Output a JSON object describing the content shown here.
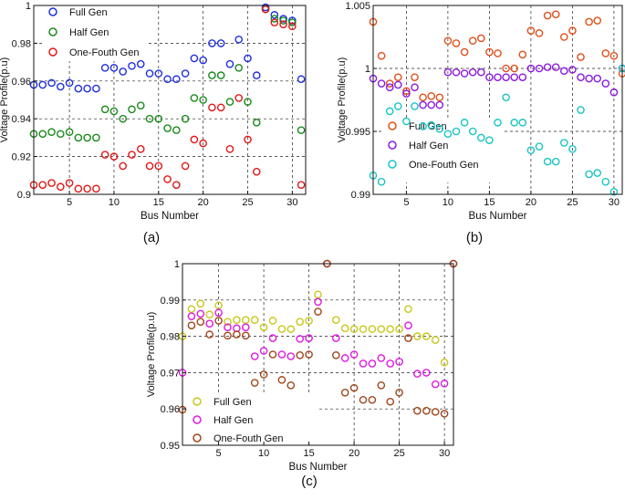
{
  "figure_labels": [
    "(a)",
    "(b)",
    "(c)"
  ],
  "colors": {
    "full": "#1f2fe0",
    "half": "#1a8a1a",
    "one_fourth": "#e01818",
    "b_full": "#e0501a",
    "b_half": "#8a1ae0",
    "b_one_fourth": "#1ac4c4",
    "c_full": "#c8c81a",
    "c_half": "#e01ae0",
    "c_one_fourth": "#a0461a"
  },
  "chart_data": [
    {
      "id": "a",
      "type": "scatter",
      "xlabel": "Bus Number",
      "ylabel": "Voltage Profile(p.u)",
      "xlim": [
        1,
        31.5
      ],
      "ylim": [
        0.9,
        1.0
      ],
      "xticks": [
        5,
        10,
        15,
        20,
        25,
        30
      ],
      "yticks": [
        0.9,
        0.92,
        0.94,
        0.96,
        0.98,
        1
      ],
      "ytick_labels": [
        "0.9",
        "0.92",
        "0.94",
        "0.96",
        "0.98",
        "1"
      ],
      "legend": [
        "Full Gen",
        "Half Gen",
        "One-Fouth Gen"
      ],
      "legend_position": "top-left",
      "series": [
        {
          "name": "Full Gen",
          "x": [
            1,
            2,
            3,
            4,
            5,
            6,
            7,
            8,
            9,
            10,
            11,
            12,
            13,
            14,
            15,
            16,
            17,
            18,
            19,
            20,
            21,
            22,
            23,
            24,
            25,
            26,
            27,
            28,
            29,
            30,
            31
          ],
          "values": [
            0.958,
            0.958,
            0.959,
            0.957,
            0.959,
            0.956,
            0.956,
            0.956,
            0.967,
            0.967,
            0.965,
            0.968,
            0.969,
            0.964,
            0.964,
            0.961,
            0.961,
            0.964,
            0.972,
            0.971,
            0.98,
            0.98,
            0.969,
            0.982,
            0.972,
            0.963,
            0.999,
            0.995,
            0.993,
            0.992,
            0.961
          ]
        },
        {
          "name": "Half Gen",
          "x": [
            1,
            2,
            3,
            4,
            5,
            6,
            7,
            8,
            9,
            10,
            11,
            12,
            13,
            14,
            15,
            16,
            17,
            18,
            19,
            20,
            21,
            22,
            23,
            24,
            25,
            26,
            27,
            28,
            29,
            30,
            31
          ],
          "values": [
            0.932,
            0.932,
            0.933,
            0.932,
            0.933,
            0.93,
            0.93,
            0.93,
            0.945,
            0.944,
            0.94,
            0.945,
            0.947,
            0.94,
            0.94,
            0.935,
            0.934,
            0.94,
            0.951,
            0.95,
            0.963,
            0.963,
            0.949,
            0.967,
            0.949,
            0.938,
            0.998,
            0.993,
            0.992,
            0.991,
            0.934
          ]
        },
        {
          "name": "One-Fouth Gen",
          "x": [
            1,
            2,
            3,
            4,
            5,
            6,
            7,
            8,
            9,
            10,
            11,
            12,
            13,
            14,
            15,
            16,
            17,
            18,
            19,
            20,
            21,
            22,
            23,
            24,
            25,
            26,
            27,
            28,
            29,
            30,
            31
          ],
          "values": [
            0.905,
            0.905,
            0.906,
            0.904,
            0.906,
            0.903,
            0.903,
            0.903,
            0.921,
            0.92,
            0.915,
            0.921,
            0.924,
            0.915,
            0.915,
            0.908,
            0.905,
            0.915,
            0.929,
            0.927,
            0.946,
            0.946,
            0.924,
            0.951,
            0.929,
            0.912,
            0.998,
            0.991,
            0.99,
            0.989,
            0.905
          ]
        }
      ]
    },
    {
      "id": "b",
      "type": "scatter",
      "xlabel": "Bus Number",
      "ylabel": "Voltage Profile(p.u)",
      "xlim": [
        1,
        31
      ],
      "ylim": [
        0.99,
        1.005
      ],
      "xticks": [
        5,
        10,
        15,
        20,
        25,
        30
      ],
      "yticks": [
        0.99,
        0.995,
        1,
        1.005
      ],
      "ytick_labels": [
        "0.99",
        "0.995",
        "1",
        "1.005"
      ],
      "legend": [
        "Full Gen",
        "Half Gen",
        "One-Fouth Gen"
      ],
      "legend_position": "bottom-left",
      "series": [
        {
          "name": "Full Gen",
          "x": [
            1,
            2,
            3,
            4,
            5,
            6,
            7,
            8,
            9,
            10,
            11,
            12,
            13,
            14,
            15,
            16,
            17,
            18,
            19,
            20,
            21,
            22,
            23,
            24,
            25,
            26,
            27,
            28,
            29,
            30,
            31
          ],
          "values": [
            1.0037,
            1.001,
            0.9988,
            0.9993,
            0.9982,
            0.9993,
            0.9977,
            0.9978,
            0.9977,
            1.0022,
            1.002,
            1.0013,
            1.0022,
            1.0024,
            1.0013,
            1.0012,
            1.0,
            1.0,
            1.0011,
            1.003,
            1.0028,
            1.0042,
            1.0043,
            1.0025,
            1.003,
            1.0009,
            1.0037,
            1.0038,
            1.0012,
            1.001,
            0.9996
          ]
        },
        {
          "name": "Half Gen",
          "x": [
            1,
            2,
            3,
            4,
            5,
            6,
            7,
            8,
            9,
            10,
            11,
            12,
            13,
            14,
            15,
            16,
            17,
            18,
            19,
            20,
            21,
            22,
            23,
            24,
            25,
            26,
            27,
            28,
            29,
            30,
            31
          ],
          "values": [
            0.9992,
            0.9988,
            0.9985,
            0.9987,
            0.998,
            0.9985,
            0.9971,
            0.9971,
            0.9971,
            0.9997,
            0.9997,
            0.9996,
            0.9997,
            0.9997,
            0.9993,
            0.9993,
            0.9993,
            0.9993,
            0.9993,
            1.0,
            1.0,
            1.0001,
            1.0001,
            0.9998,
            0.9999,
            0.9993,
            0.9992,
            0.9992,
            0.9988,
            0.9981,
            1.0
          ]
        },
        {
          "name": "One-Fouth Gen",
          "x": [
            1,
            2,
            3,
            4,
            5,
            6,
            7,
            8,
            9,
            10,
            11,
            12,
            13,
            14,
            15,
            16,
            17,
            18,
            19,
            20,
            21,
            22,
            23,
            24,
            25,
            26,
            27,
            28,
            29,
            30,
            31
          ],
          "values": [
            0.9915,
            0.991,
            0.9966,
            0.997,
            0.9958,
            0.997,
            0.9954,
            0.9955,
            0.9952,
            0.9948,
            0.995,
            0.9957,
            0.995,
            0.9945,
            0.9943,
            0.9957,
            0.9977,
            0.9957,
            0.9957,
            0.9935,
            0.9938,
            0.9926,
            0.9926,
            0.9941,
            0.9936,
            0.9967,
            0.9916,
            0.9917,
            0.991,
            0.9902,
            1.0
          ]
        }
      ]
    },
    {
      "id": "c",
      "type": "scatter",
      "xlabel": "Bus Number",
      "ylabel": "Voltage Profile(p.u)",
      "xlim": [
        1,
        31
      ],
      "ylim": [
        0.95,
        1.0
      ],
      "xticks": [
        5,
        10,
        15,
        20,
        25,
        30
      ],
      "yticks": [
        0.95,
        0.96,
        0.97,
        0.98,
        0.99,
        1
      ],
      "ytick_labels": [
        "0.95",
        "0.96",
        "0.97",
        "0.98",
        "0.99",
        "1"
      ],
      "legend": [
        "Full Gen",
        "Half Gen",
        "One-Fouth Gen"
      ],
      "legend_position": "bottom-left",
      "series": [
        {
          "name": "Full Gen",
          "x": [
            1,
            2,
            3,
            4,
            5,
            6,
            7,
            8,
            9,
            10,
            11,
            12,
            13,
            14,
            15,
            16,
            17,
            18,
            19,
            20,
            21,
            22,
            23,
            24,
            25,
            26,
            27,
            28,
            29,
            30,
            31
          ],
          "values": [
            0.98,
            0.9875,
            0.989,
            0.986,
            0.9885,
            0.984,
            0.9845,
            0.9845,
            0.9845,
            0.9825,
            0.9843,
            0.982,
            0.982,
            0.984,
            0.9843,
            0.9915,
            1.0,
            0.9845,
            0.9822,
            0.982,
            0.982,
            0.982,
            0.982,
            0.982,
            0.982,
            0.9875,
            0.98,
            0.98,
            0.979,
            0.9728,
            1.0
          ]
        },
        {
          "name": "Half Gen",
          "x": [
            1,
            2,
            3,
            4,
            5,
            6,
            7,
            8,
            9,
            10,
            11,
            12,
            13,
            14,
            15,
            16,
            17,
            18,
            19,
            20,
            21,
            22,
            23,
            24,
            25,
            26,
            27,
            28,
            29,
            30,
            31
          ],
          "values": [
            0.97,
            0.9855,
            0.9862,
            0.9835,
            0.9865,
            0.9825,
            0.9822,
            0.9825,
            0.9745,
            0.976,
            0.9795,
            0.975,
            0.9745,
            0.9793,
            0.9795,
            0.9895,
            1.0,
            0.9795,
            0.974,
            0.975,
            0.9725,
            0.9725,
            0.974,
            0.9725,
            0.973,
            0.983,
            0.9697,
            0.97,
            0.9668,
            0.967,
            1.0
          ]
        },
        {
          "name": "One-Fouth Gen",
          "x": [
            1,
            2,
            3,
            4,
            5,
            6,
            7,
            8,
            9,
            10,
            11,
            12,
            13,
            14,
            15,
            16,
            17,
            18,
            19,
            20,
            21,
            22,
            23,
            24,
            25,
            26,
            27,
            28,
            29,
            30,
            31
          ],
          "values": [
            0.9598,
            0.983,
            0.984,
            0.9805,
            0.9843,
            0.9802,
            0.9805,
            0.9802,
            0.9672,
            0.9695,
            0.975,
            0.968,
            0.9665,
            0.9748,
            0.975,
            0.9868,
            1.0,
            0.9748,
            0.9645,
            0.9658,
            0.9625,
            0.9625,
            0.9665,
            0.962,
            0.9645,
            0.9795,
            0.9595,
            0.9595,
            0.9592,
            0.9587,
            1.0
          ]
        }
      ]
    }
  ]
}
